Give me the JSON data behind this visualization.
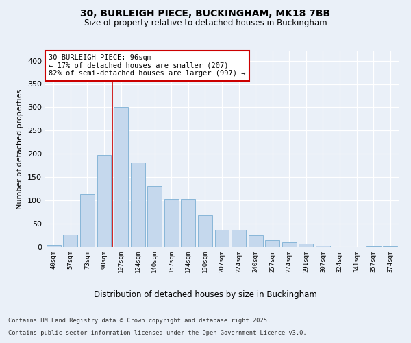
{
  "title1": "30, BURLEIGH PIECE, BUCKINGHAM, MK18 7BB",
  "title2": "Size of property relative to detached houses in Buckingham",
  "xlabel": "Distribution of detached houses by size in Buckingham",
  "ylabel": "Number of detached properties",
  "categories": [
    "40sqm",
    "57sqm",
    "73sqm",
    "90sqm",
    "107sqm",
    "124sqm",
    "140sqm",
    "157sqm",
    "174sqm",
    "190sqm",
    "207sqm",
    "224sqm",
    "240sqm",
    "257sqm",
    "274sqm",
    "291sqm",
    "307sqm",
    "324sqm",
    "341sqm",
    "357sqm",
    "374sqm"
  ],
  "values": [
    5,
    26,
    114,
    197,
    300,
    182,
    131,
    103,
    103,
    68,
    37,
    37,
    25,
    15,
    10,
    8,
    3,
    0,
    0,
    1,
    2
  ],
  "bar_color": "#c5d8ed",
  "bar_edge_color": "#7bafd4",
  "bg_color": "#eaf0f8",
  "grid_color": "#ffffff",
  "annotation_text1": "30 BURLEIGH PIECE: 96sqm",
  "annotation_text2": "← 17% of detached houses are smaller (207)",
  "annotation_text3": "82% of semi-detached houses are larger (997) →",
  "annotation_box_color": "#ffffff",
  "annotation_box_edge": "#cc0000",
  "vline_color": "#cc0000",
  "vline_x": 3.5,
  "ylim": [
    0,
    420
  ],
  "yticks": [
    0,
    50,
    100,
    150,
    200,
    250,
    300,
    350,
    400
  ],
  "footnote1": "Contains HM Land Registry data © Crown copyright and database right 2025.",
  "footnote2": "Contains public sector information licensed under the Open Government Licence v3.0."
}
